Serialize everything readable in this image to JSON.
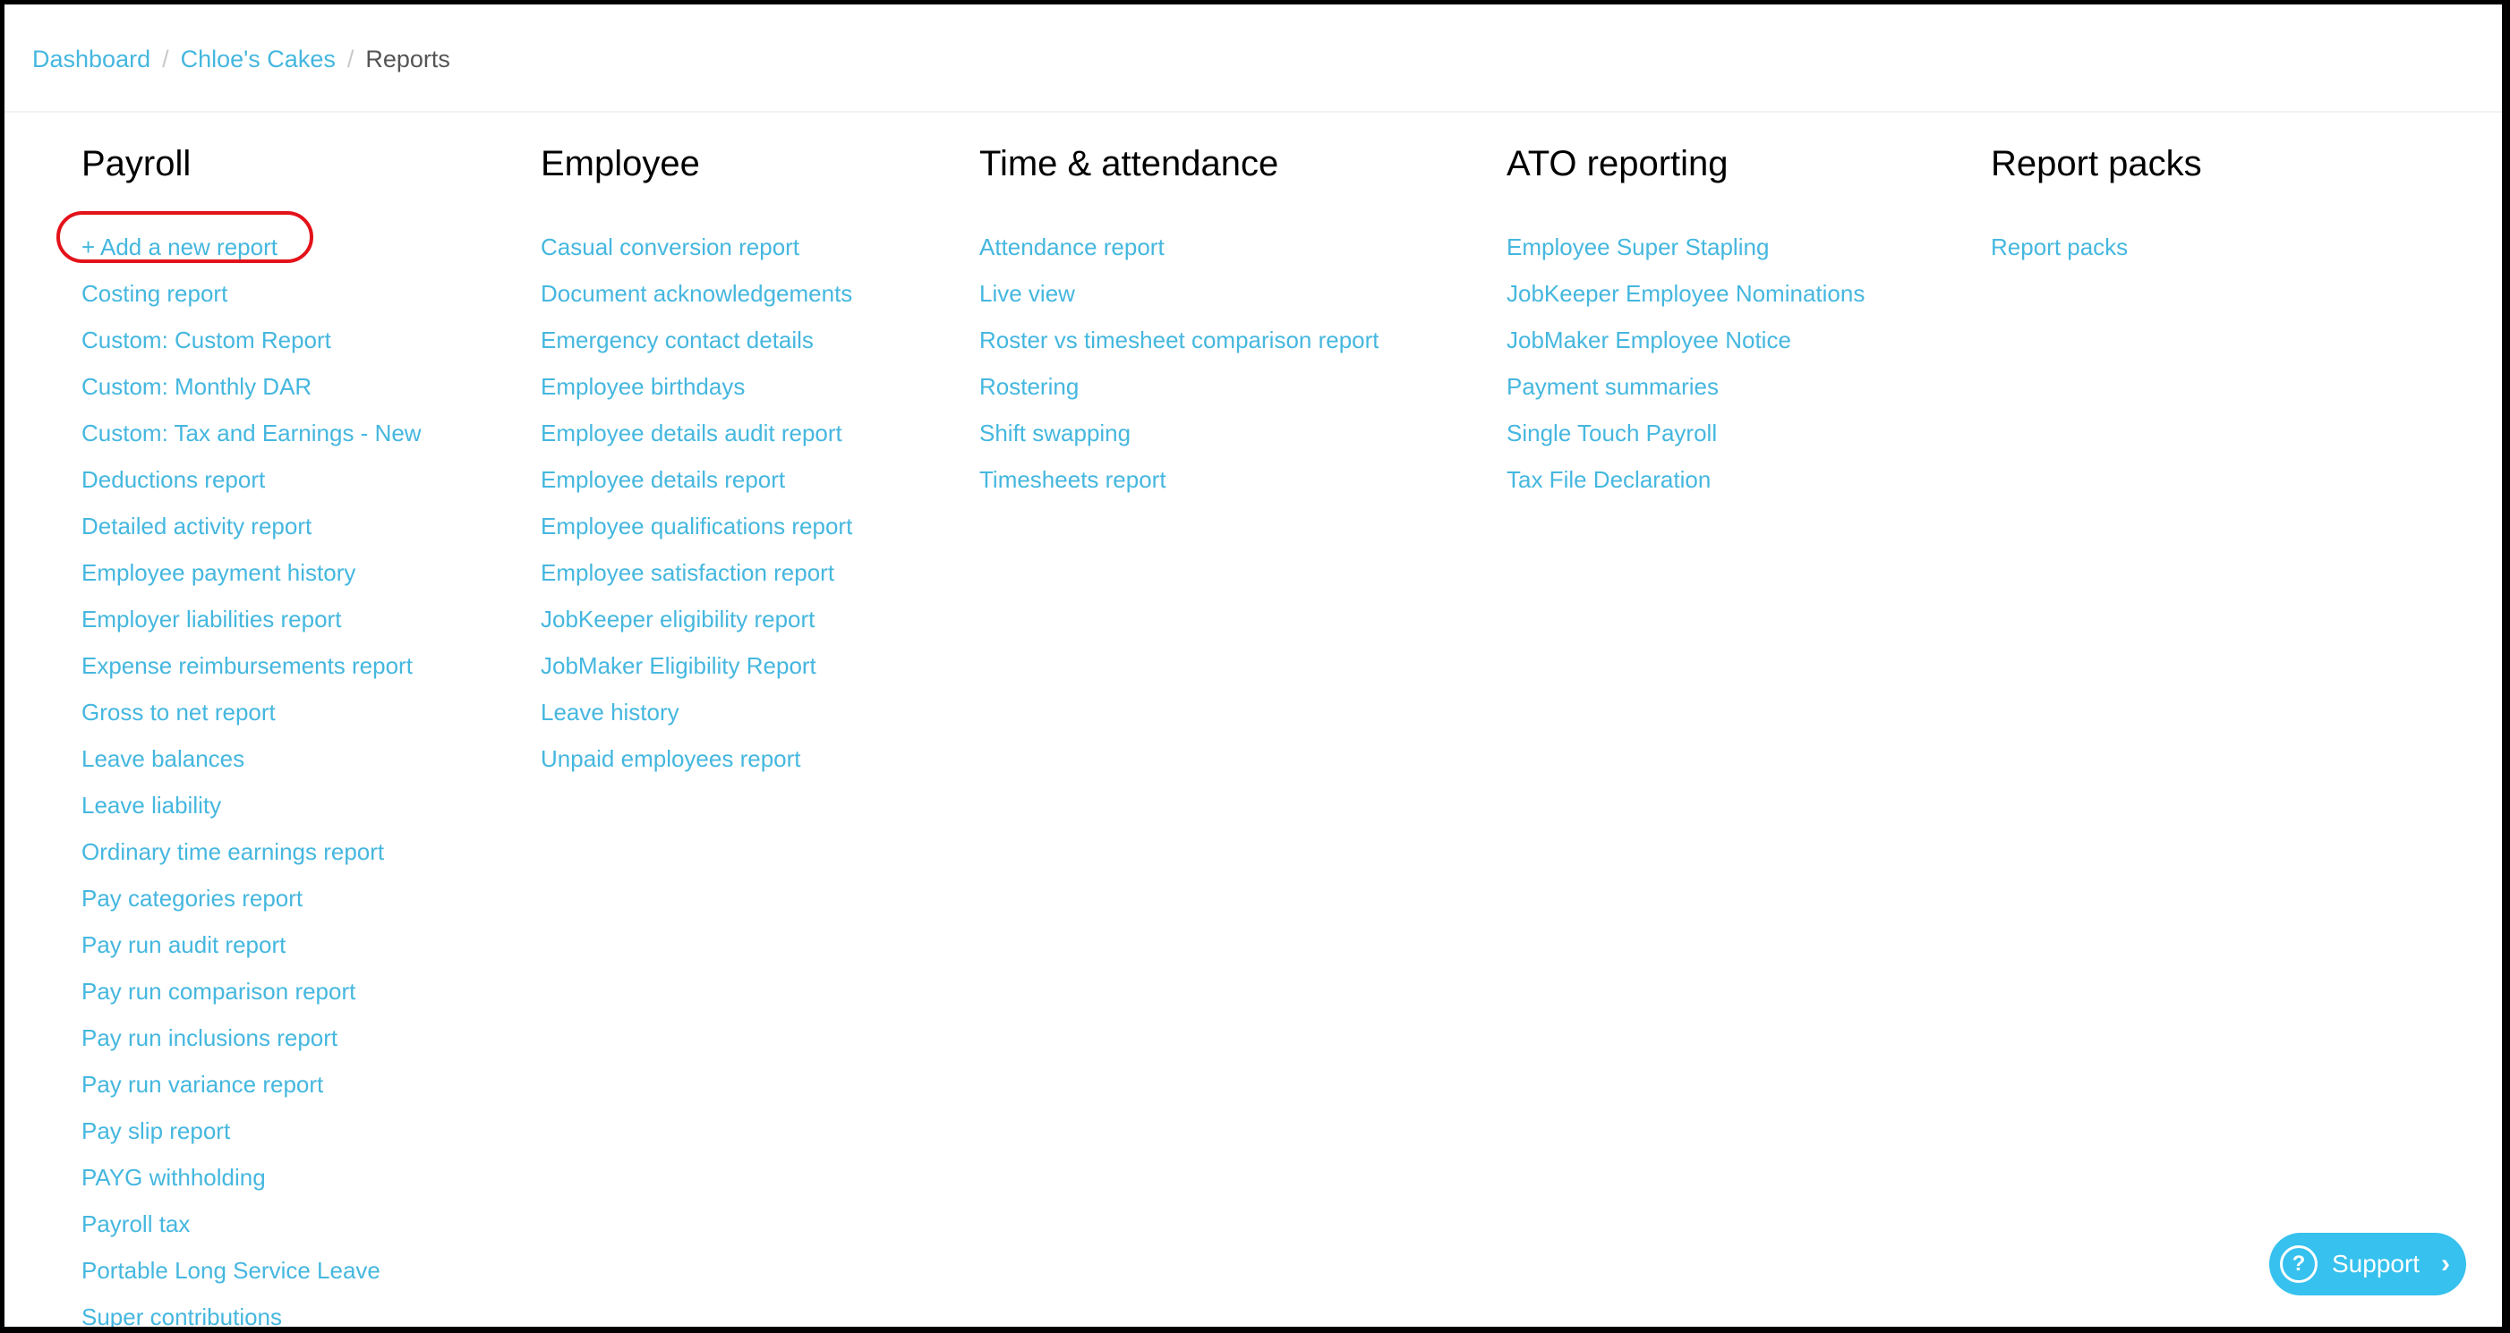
{
  "breadcrumb": {
    "items": [
      {
        "label": "Dashboard"
      },
      {
        "label": "Chloe's Cakes"
      }
    ],
    "current": "Reports",
    "separator": "/"
  },
  "columns": [
    {
      "title": "Payroll",
      "items": [
        "+ Add a new report",
        "Costing report",
        "Custom: Custom Report",
        "Custom: Monthly DAR",
        "Custom: Tax and Earnings - New",
        "Deductions report",
        "Detailed activity report",
        "Employee payment history",
        "Employer liabilities report",
        "Expense reimbursements report",
        "Gross to net report",
        "Leave balances",
        "Leave liability",
        "Ordinary time earnings report",
        "Pay categories report",
        "Pay run audit report",
        "Pay run comparison report",
        "Pay run inclusions report",
        "Pay run variance report",
        "Pay slip report",
        "PAYG withholding",
        "Payroll tax",
        "Portable Long Service Leave",
        "Super contributions"
      ]
    },
    {
      "title": "Employee",
      "items": [
        "Casual conversion report",
        "Document acknowledgements",
        "Emergency contact details",
        "Employee birthdays",
        "Employee details audit report",
        "Employee details report",
        "Employee qualifications report",
        "Employee satisfaction report",
        "JobKeeper eligibility report",
        "JobMaker Eligibility Report",
        "Leave history",
        "Unpaid employees report"
      ]
    },
    {
      "title": "Time & attendance",
      "items": [
        "Attendance report",
        "Live view",
        "Roster vs timesheet comparison report",
        "Rostering",
        "Shift swapping",
        "Timesheets report"
      ]
    },
    {
      "title": "ATO reporting",
      "items": [
        "Employee Super Stapling",
        "JobKeeper Employee Nominations",
        "JobMaker Employee Notice",
        "Payment summaries",
        "Single Touch Payroll",
        "Tax File Declaration"
      ]
    },
    {
      "title": "Report packs",
      "items": [
        "Report packs"
      ]
    }
  ],
  "support": {
    "label": "Support",
    "icon": "question-circle-icon",
    "chevron": "chevron-right-icon",
    "q": "?",
    "arrow": "›"
  },
  "colors": {
    "link": "#45b7df",
    "highlight_ring": "#e3121a",
    "support_bg": "#36c1ee"
  }
}
